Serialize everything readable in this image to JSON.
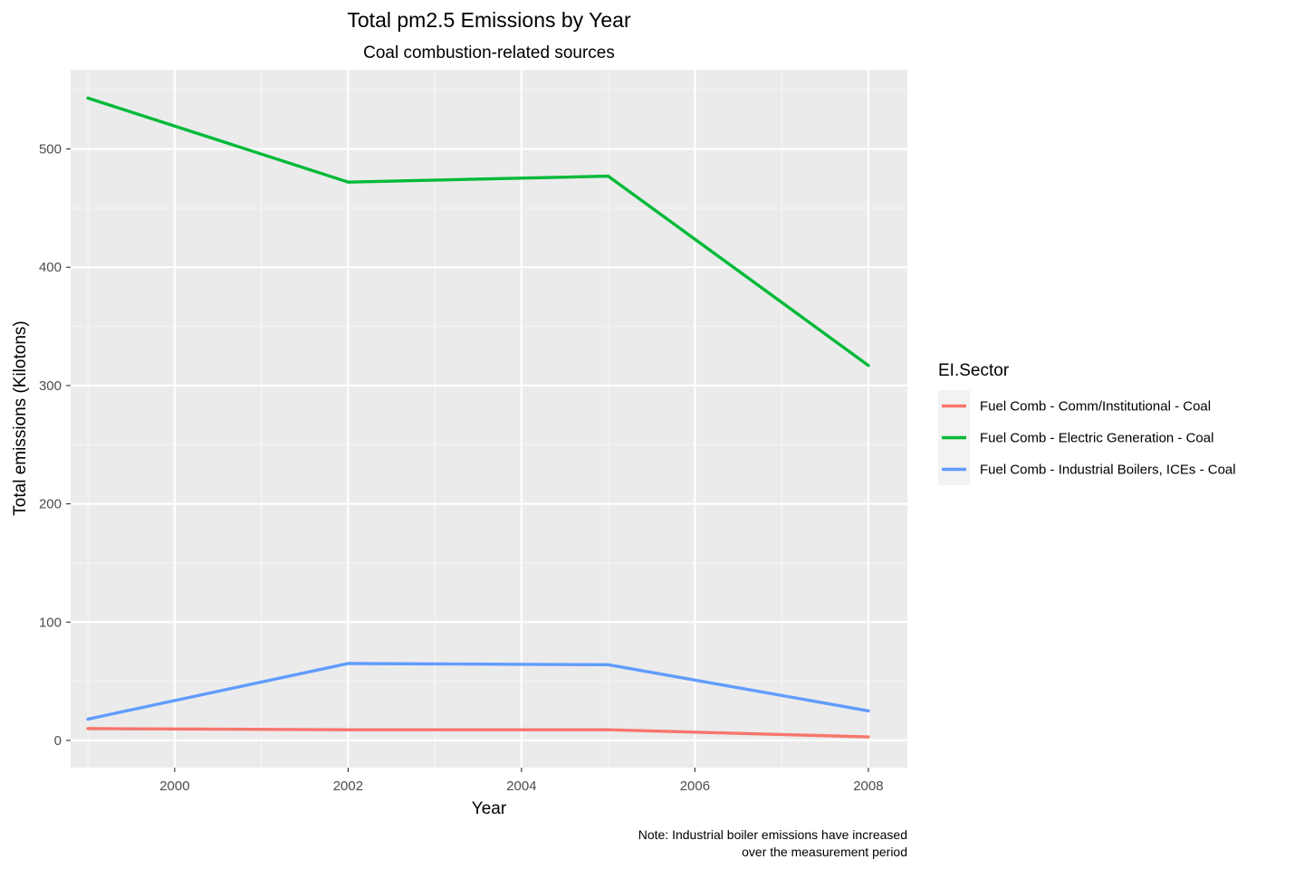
{
  "chart_data": {
    "type": "line",
    "title": "Total pm2.5 Emissions by Year",
    "subtitle": "Coal combustion-related sources",
    "xlabel": "Year",
    "ylabel": "Total emissions (Kilotons)",
    "caption": [
      "Note: Industrial boiler emissions have increased",
      "over the measurement period"
    ],
    "x": [
      1999,
      2002,
      2005,
      2008
    ],
    "xlim": [
      1998.8,
      2008.45
    ],
    "ylim": [
      -23,
      567
    ],
    "xticks": [
      2000,
      2002,
      2004,
      2006,
      2008
    ],
    "xtick_labels": [
      "2000",
      "2002",
      "2004",
      "2006",
      "2008"
    ],
    "yticks": [
      0,
      100,
      200,
      300,
      400,
      500
    ],
    "ytick_labels": [
      "0",
      "100",
      "200",
      "300",
      "400",
      "500"
    ],
    "grid": true,
    "legend": {
      "title": "EI.Sector",
      "position": "right"
    },
    "series": [
      {
        "name": "Fuel Comb - Comm/Institutional - Coal",
        "color": "#F8766D",
        "values": [
          10.0,
          9.0,
          9.0,
          3.0
        ]
      },
      {
        "name": "Fuel Comb - Electric Generation - Coal",
        "color": "#00BA38",
        "values": [
          543.0,
          472.0,
          477.0,
          317.0
        ]
      },
      {
        "name": "Fuel Comb - Industrial Boilers, ICEs - Coal",
        "color": "#619CFF",
        "values": [
          18.0,
          65.0,
          64.0,
          25.0
        ]
      }
    ]
  },
  "colors": {
    "panel_background": "#EBEBEB",
    "grid_major": "#FFFFFF",
    "grid_minor": "#F5F5F5",
    "text_dark": "#000000",
    "text_axis": "#4D4D4D"
  }
}
